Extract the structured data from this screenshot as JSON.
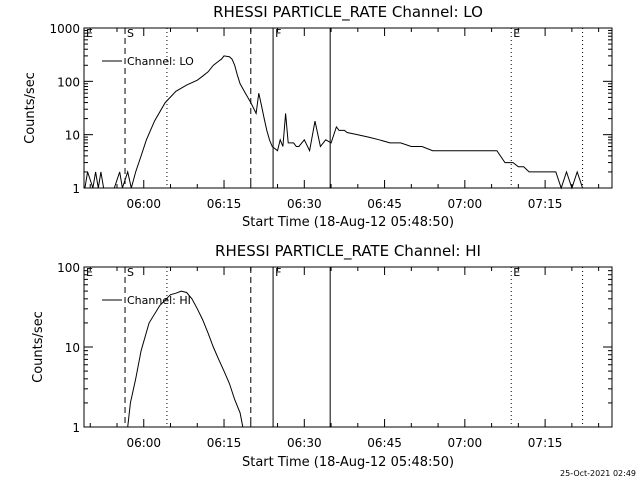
{
  "footer_timestamp": "25-Oct-2021 02:49",
  "chart_data": [
    {
      "type": "line",
      "title": "RHESSI PARTICLE_RATE Channel: LO",
      "xlabel": "Start Time (18-Aug-12 05:48:50)",
      "ylabel": "Counts/sec",
      "yscale": "log",
      "xlim": [
        "05:48:50",
        "07:27:30"
      ],
      "ylim": [
        1,
        1000
      ],
      "x_ticks": [
        "06:00",
        "06:15",
        "06:30",
        "06:45",
        "07:00",
        "07:15"
      ],
      "y_ticks": [
        "1",
        "10",
        "100",
        "1000"
      ],
      "legend": {
        "position": "top-left",
        "label": "Channel: LO"
      },
      "series": [
        {
          "name": "Channel: LO",
          "x": [
            "05:49:00",
            "05:49:30",
            "05:50:30",
            "05:51:00",
            "05:51:30",
            "05:52:00",
            "05:52:30",
            "05:54:30",
            "05:55:30",
            "05:56:00",
            "05:57:00",
            "05:57:40",
            "05:58:30",
            "05:59:30",
            "06:00:30",
            "06:02:00",
            "06:04:00",
            "06:06:00",
            "06:08:00",
            "06:10:00",
            "06:11:00",
            "06:12:00",
            "06:13:00",
            "06:14:00",
            "06:14:30",
            "06:15:00",
            "06:16:00",
            "06:16:30",
            "06:17:00",
            "06:17:30",
            "06:18:00",
            "06:19:00",
            "06:20:00",
            "06:21:00",
            "06:21:30",
            "06:22:00",
            "06:22:30",
            "06:23:00",
            "06:23:30",
            "06:24:00",
            "06:25:00",
            "06:25:30",
            "06:26:00",
            "06:26:30",
            "06:27:00",
            "06:28:00",
            "06:28:30",
            "06:29:00",
            "06:30:00",
            "06:31:00",
            "06:32:00",
            "06:33:00",
            "06:34:00",
            "06:35:00",
            "06:36:00",
            "06:36:30",
            "06:37:30",
            "06:38:00",
            "06:40:00",
            "06:42:00",
            "06:44:00",
            "06:46:00",
            "06:48:00",
            "06:50:00",
            "06:52:00",
            "06:54:00",
            "06:56:00",
            "06:58:00",
            "07:00:00",
            "07:02:00",
            "07:04:00",
            "07:06:00",
            "07:07:30",
            "07:08:00",
            "07:09:00",
            "07:10:00",
            "07:11:00",
            "07:12:00",
            "07:13:00",
            "07:14:00",
            "07:15:00",
            "07:16:00",
            "07:17:00",
            "07:18:00",
            "07:19:00",
            "07:20:00",
            "07:21:00",
            "07:22:00",
            "07:23:00",
            "07:23:30"
          ],
          "y": [
            1,
            2,
            1,
            2,
            1,
            2,
            1,
            1,
            2,
            1,
            2,
            1,
            2,
            4,
            8,
            18,
            40,
            65,
            85,
            105,
            125,
            150,
            200,
            240,
            260,
            300,
            290,
            260,
            200,
            130,
            90,
            60,
            40,
            25,
            60,
            35,
            20,
            12,
            8,
            6,
            5,
            8,
            6,
            25,
            7,
            7,
            6,
            6,
            8,
            5,
            18,
            6,
            8,
            7,
            14,
            12,
            12,
            11,
            10,
            9,
            8,
            7,
            7,
            6,
            6,
            5,
            5,
            5,
            5,
            5,
            5,
            5,
            3,
            3,
            3,
            2.5,
            2.5,
            2,
            2,
            2,
            2,
            2,
            2,
            1,
            2,
            1,
            2,
            1,
            1,
            1
          ]
        }
      ],
      "markers": [
        {
          "label": "E",
          "time": "05:48:50",
          "style": "dashed"
        },
        {
          "label": "S",
          "time": "05:56:30",
          "style": "dashed"
        },
        {
          "label": "",
          "time": "06:04:20",
          "style": "dotted"
        },
        {
          "label": "",
          "time": "06:20:00",
          "style": "dashed"
        },
        {
          "label": "F",
          "time": "06:24:10",
          "style": "solid"
        },
        {
          "label": "",
          "time": "06:34:50",
          "style": "solid"
        },
        {
          "label": "E",
          "time": "07:08:40",
          "style": "dotted"
        },
        {
          "label": "",
          "time": "07:22:00",
          "style": "dotted"
        }
      ]
    },
    {
      "type": "line",
      "title": "RHESSI PARTICLE_RATE Channel: HI",
      "xlabel": "Start Time (18-Aug-12 05:48:50)",
      "ylabel": "Counts/sec",
      "yscale": "log",
      "xlim": [
        "05:48:50",
        "07:27:30"
      ],
      "ylim": [
        1,
        100
      ],
      "x_ticks": [
        "06:00",
        "06:15",
        "06:30",
        "06:45",
        "07:00",
        "07:15"
      ],
      "y_ticks": [
        "1",
        "10",
        "100"
      ],
      "legend": {
        "position": "top-left",
        "label": "Channel: HI"
      },
      "series": [
        {
          "name": "Channel: HI",
          "x": [
            "05:57:00",
            "05:57:30",
            "05:58:30",
            "05:59:30",
            "06:01:00",
            "06:03:00",
            "06:05:00",
            "06:06:00",
            "06:07:00",
            "06:08:00",
            "06:09:00",
            "06:10:00",
            "06:11:00",
            "06:12:00",
            "06:13:00",
            "06:14:00",
            "06:15:00",
            "06:16:00",
            "06:17:00",
            "06:18:00",
            "06:18:30"
          ],
          "y": [
            1,
            2,
            4,
            9,
            20,
            33,
            45,
            47,
            50,
            48,
            40,
            30,
            22,
            15,
            10,
            7,
            5,
            3.5,
            2.2,
            1.5,
            1
          ]
        }
      ],
      "markers": [
        {
          "label": "E",
          "time": "05:48:50",
          "style": "dashed"
        },
        {
          "label": "S",
          "time": "05:56:30",
          "style": "dashed"
        },
        {
          "label": "",
          "time": "06:04:20",
          "style": "dotted"
        },
        {
          "label": "",
          "time": "06:20:00",
          "style": "dashed"
        },
        {
          "label": "F",
          "time": "06:24:10",
          "style": "solid"
        },
        {
          "label": "",
          "time": "06:34:50",
          "style": "solid"
        },
        {
          "label": "E",
          "time": "07:08:40",
          "style": "dotted"
        },
        {
          "label": "",
          "time": "07:22:00",
          "style": "dotted"
        }
      ]
    }
  ]
}
